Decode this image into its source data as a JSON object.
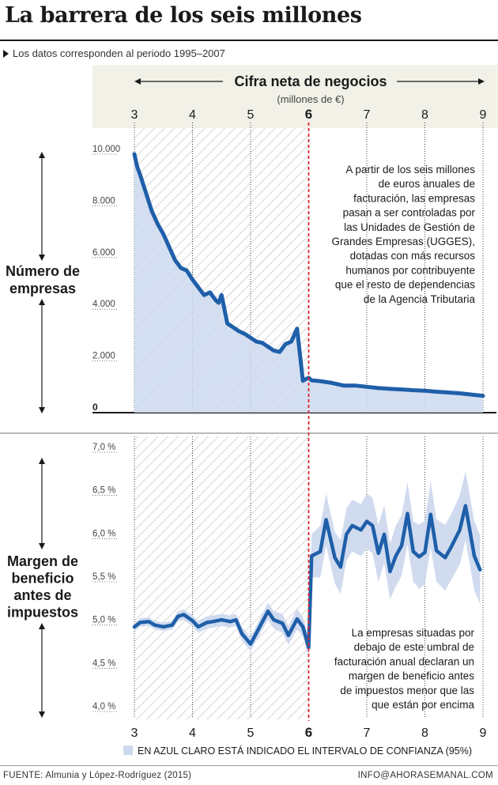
{
  "title": "La barrera de los seis millones",
  "subtitle": "Los datos corresponden al periodo 1995–2007",
  "source": "FUENTE: Almunia y López-Rodríguez (2015)",
  "email": "INFO@AHORASEMANAL.COM",
  "colors": {
    "line": "#1f5fa9",
    "band": "#cdd9ee",
    "threshold": "#e0262d",
    "header_bg": "#f2f1e8",
    "hatch": "#e4e4e4"
  },
  "chart_data": [
    {
      "type": "line",
      "title": "",
      "xlabel": "Cifra neta de negocios",
      "xlabel_unit": "(millones de €)",
      "ylabel": "Número de empresas",
      "xlim": [
        3,
        9
      ],
      "ylim": [
        0,
        10000
      ],
      "x_ticks": [
        "3",
        "4",
        "5",
        "6",
        "7",
        "8",
        "9"
      ],
      "y_ticks": [
        "0",
        "2.000",
        "4.000",
        "6.000",
        "8.000",
        "10.000"
      ],
      "y_tick_values": [
        0,
        2000,
        4000,
        6000,
        8000,
        10000
      ],
      "threshold": 6,
      "annotation": "A partir de los seis millones de euros anuales de facturación, las empresas pasan a ser controladas por las Unidades de Gestión de Grandes Empresas (UGGES), dotadas con más recursos humanos por contribuyente que el resto de dependencias de la Agencia Tributaria",
      "annotation_lines": [
        "A partir de los seis millones",
        "de euros anuales de",
        "facturación, las empresas",
        "pasan a ser controladas por",
        "las Unidades de Gestión de",
        "Grandes Empresas (UGGES),",
        "dotadas con más recursos",
        "humanos por contribuyente",
        "que el resto de dependencias",
        "de la Agencia Tributaria"
      ],
      "series": [
        {
          "x": [
            3.0,
            3.05,
            3.1,
            3.2,
            3.3,
            3.4,
            3.5,
            3.6,
            3.7,
            3.8,
            3.9,
            4.0,
            4.1,
            4.2,
            4.3,
            4.4,
            4.45,
            4.5,
            4.6,
            4.7,
            4.8,
            4.9,
            5.0,
            5.1,
            5.2,
            5.3,
            5.4,
            5.5,
            5.6,
            5.7,
            5.8,
            5.9,
            5.95,
            6.0,
            6.05,
            6.2,
            6.4,
            6.6,
            6.8,
            7.0,
            7.2,
            7.4,
            7.6,
            7.8,
            8.0,
            8.2,
            8.4,
            8.6,
            8.8,
            9.0
          ],
          "y": [
            10000,
            9500,
            9200,
            8500,
            7800,
            7300,
            6900,
            6400,
            5900,
            5600,
            5500,
            5150,
            4850,
            4550,
            4650,
            4350,
            4250,
            4550,
            3450,
            3300,
            3150,
            3050,
            2900,
            2750,
            2700,
            2550,
            2400,
            2350,
            2650,
            2750,
            3250,
            1230,
            1300,
            1350,
            1250,
            1220,
            1150,
            1050,
            1050,
            1000,
            950,
            920,
            900,
            870,
            850,
            810,
            780,
            750,
            700,
            650
          ]
        }
      ]
    },
    {
      "type": "line",
      "title": "",
      "xlabel": "",
      "ylabel": "Margen de beneficio antes de impuestos",
      "xlim": [
        3,
        9
      ],
      "ylim": [
        4.0,
        7.0
      ],
      "x_ticks": [
        "3",
        "4",
        "5",
        "6",
        "7",
        "8",
        "9"
      ],
      "y_ticks": [
        "4,0 %",
        "4,5 %",
        "5,0 %",
        "5,5 %",
        "6,0 %",
        "6,5 %",
        "7,0 %"
      ],
      "y_tick_values": [
        4.0,
        4.5,
        5.0,
        5.5,
        6.0,
        6.5,
        7.0
      ],
      "threshold": 6,
      "annotation": "La empresas situadas por debajo de este umbral de facturación anual declaran un margen de beneficio antes de impuestos menor que las que están por encima",
      "annotation_lines": [
        "La empresas situadas por",
        "debajo de este umbral de",
        "facturación anual declaran un",
        "margen de beneficio antes",
        "de impuestos menor que las",
        "que están por encima"
      ],
      "legend": "EN AZUL CLARO ESTÁ INDICADO EL INTERVALO DE CONFIANZA (95%)",
      "series": [
        {
          "x": [
            3.0,
            3.1,
            3.25,
            3.35,
            3.5,
            3.65,
            3.75,
            3.85,
            4.0,
            4.1,
            4.25,
            4.35,
            4.5,
            4.65,
            4.75,
            4.85,
            5.0,
            5.15,
            5.3,
            5.4,
            5.55,
            5.65,
            5.8,
            5.9,
            6.0,
            6.05,
            6.2,
            6.3,
            6.45,
            6.55,
            6.65,
            6.75,
            6.9,
            7.0,
            7.1,
            7.2,
            7.3,
            7.4,
            7.5,
            7.6,
            7.7,
            7.8,
            7.9,
            8.0,
            8.1,
            8.2,
            8.35,
            8.45,
            8.6,
            8.7,
            8.85,
            8.95
          ],
          "y": [
            4.98,
            5.03,
            5.04,
            5.0,
            4.98,
            5.0,
            5.1,
            5.12,
            5.05,
            4.98,
            5.03,
            5.04,
            5.06,
            5.04,
            5.06,
            4.9,
            4.78,
            4.97,
            5.16,
            5.06,
            5.02,
            4.88,
            5.07,
            4.98,
            4.74,
            5.8,
            5.85,
            6.22,
            5.78,
            5.67,
            6.05,
            6.15,
            6.1,
            6.2,
            6.15,
            5.83,
            6.05,
            5.62,
            5.8,
            5.92,
            6.29,
            5.85,
            5.79,
            5.84,
            6.28,
            5.86,
            5.78,
            5.9,
            6.1,
            6.38,
            5.8,
            5.64
          ],
          "ci_low": [
            4.94,
            4.98,
            4.99,
            4.95,
            4.93,
            4.95,
            5.04,
            5.06,
            4.99,
            4.91,
            4.96,
            4.97,
            4.99,
            4.97,
            4.99,
            4.82,
            4.7,
            4.88,
            5.06,
            4.96,
            4.91,
            4.77,
            4.95,
            4.87,
            4.63,
            5.55,
            5.55,
            5.92,
            5.48,
            5.36,
            5.75,
            5.85,
            5.8,
            5.88,
            5.83,
            5.5,
            5.72,
            5.3,
            5.45,
            5.57,
            5.93,
            5.5,
            5.42,
            5.47,
            5.9,
            5.5,
            5.4,
            5.52,
            5.7,
            5.98,
            5.4,
            5.24
          ],
          "ci_high": [
            5.02,
            5.08,
            5.09,
            5.05,
            5.03,
            5.05,
            5.16,
            5.18,
            5.11,
            5.05,
            5.1,
            5.11,
            5.13,
            5.11,
            5.13,
            4.98,
            4.86,
            5.06,
            5.26,
            5.16,
            5.13,
            4.99,
            5.19,
            5.09,
            4.85,
            6.05,
            6.15,
            6.52,
            6.08,
            5.98,
            6.35,
            6.45,
            6.4,
            6.52,
            6.47,
            6.16,
            6.38,
            5.94,
            6.15,
            6.27,
            6.65,
            6.2,
            6.16,
            6.21,
            6.66,
            6.22,
            6.16,
            6.28,
            6.5,
            6.78,
            6.2,
            6.04
          ]
        }
      ]
    }
  ]
}
